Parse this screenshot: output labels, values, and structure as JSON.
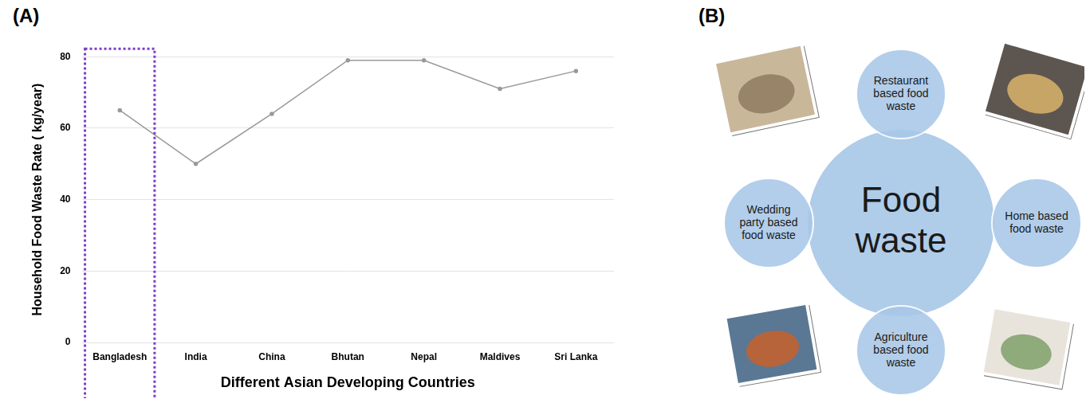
{
  "panel_labels": [
    "(A)",
    "(B)"
  ],
  "chart_data": {
    "type": "line",
    "x_label": "Different Asian Developing Countries",
    "y_label": "Household Food Waste Rate ( kg/year)",
    "categories": [
      "Bangladesh",
      "India",
      "China",
      "Bhutan",
      "Nepal",
      "Maldives",
      "Sri Lanka"
    ],
    "values": [
      65,
      50,
      64,
      79,
      79,
      71,
      76
    ],
    "color": "#999999",
    "ylim": [
      0,
      80
    ],
    "yticks": [
      0,
      20,
      40,
      60,
      80
    ],
    "grid": true
  },
  "diagram": {
    "center": "Food waste",
    "nodes": [
      {
        "label": "Restaurant based food waste"
      },
      {
        "label": "Home based food waste"
      },
      {
        "label": "Agriculture based food waste"
      },
      {
        "label": "Wedding party based food waste"
      }
    ]
  }
}
